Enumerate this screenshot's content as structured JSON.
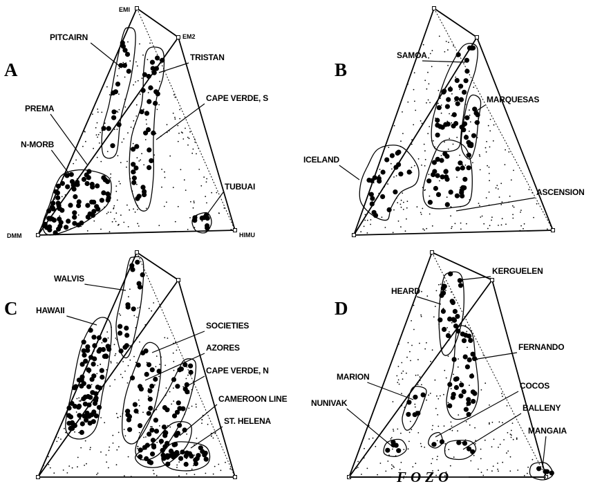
{
  "panels": [
    {
      "letter": "A",
      "vertices": [
        "EMI",
        "EM2",
        "DMM",
        "HIMU"
      ],
      "groups": [
        "PITCAIRN",
        "TRISTAN",
        "CAPE VERDE, S",
        "PREMA",
        "N-MORB",
        "TUBUAI"
      ]
    },
    {
      "letter": "B",
      "vertices": [],
      "groups": [
        "SAMOA",
        "MARQUESAS",
        "ICELAND",
        "ASCENSION"
      ]
    },
    {
      "letter": "C",
      "vertices": [],
      "groups": [
        "WALVIS",
        "HAWAII",
        "SOCIETIES",
        "AZORES",
        "CAPE VERDE, N",
        "CAMEROON LINE",
        "ST. HELENA"
      ]
    },
    {
      "letter": "D",
      "vertices": [],
      "groups": [
        "KERGUELEN",
        "HEARD",
        "FERNANDO",
        "MARION",
        "COCOS",
        "NUNIVAK",
        "BALLENY",
        "MANGAIA"
      ],
      "base_label": "FOZO"
    }
  ]
}
